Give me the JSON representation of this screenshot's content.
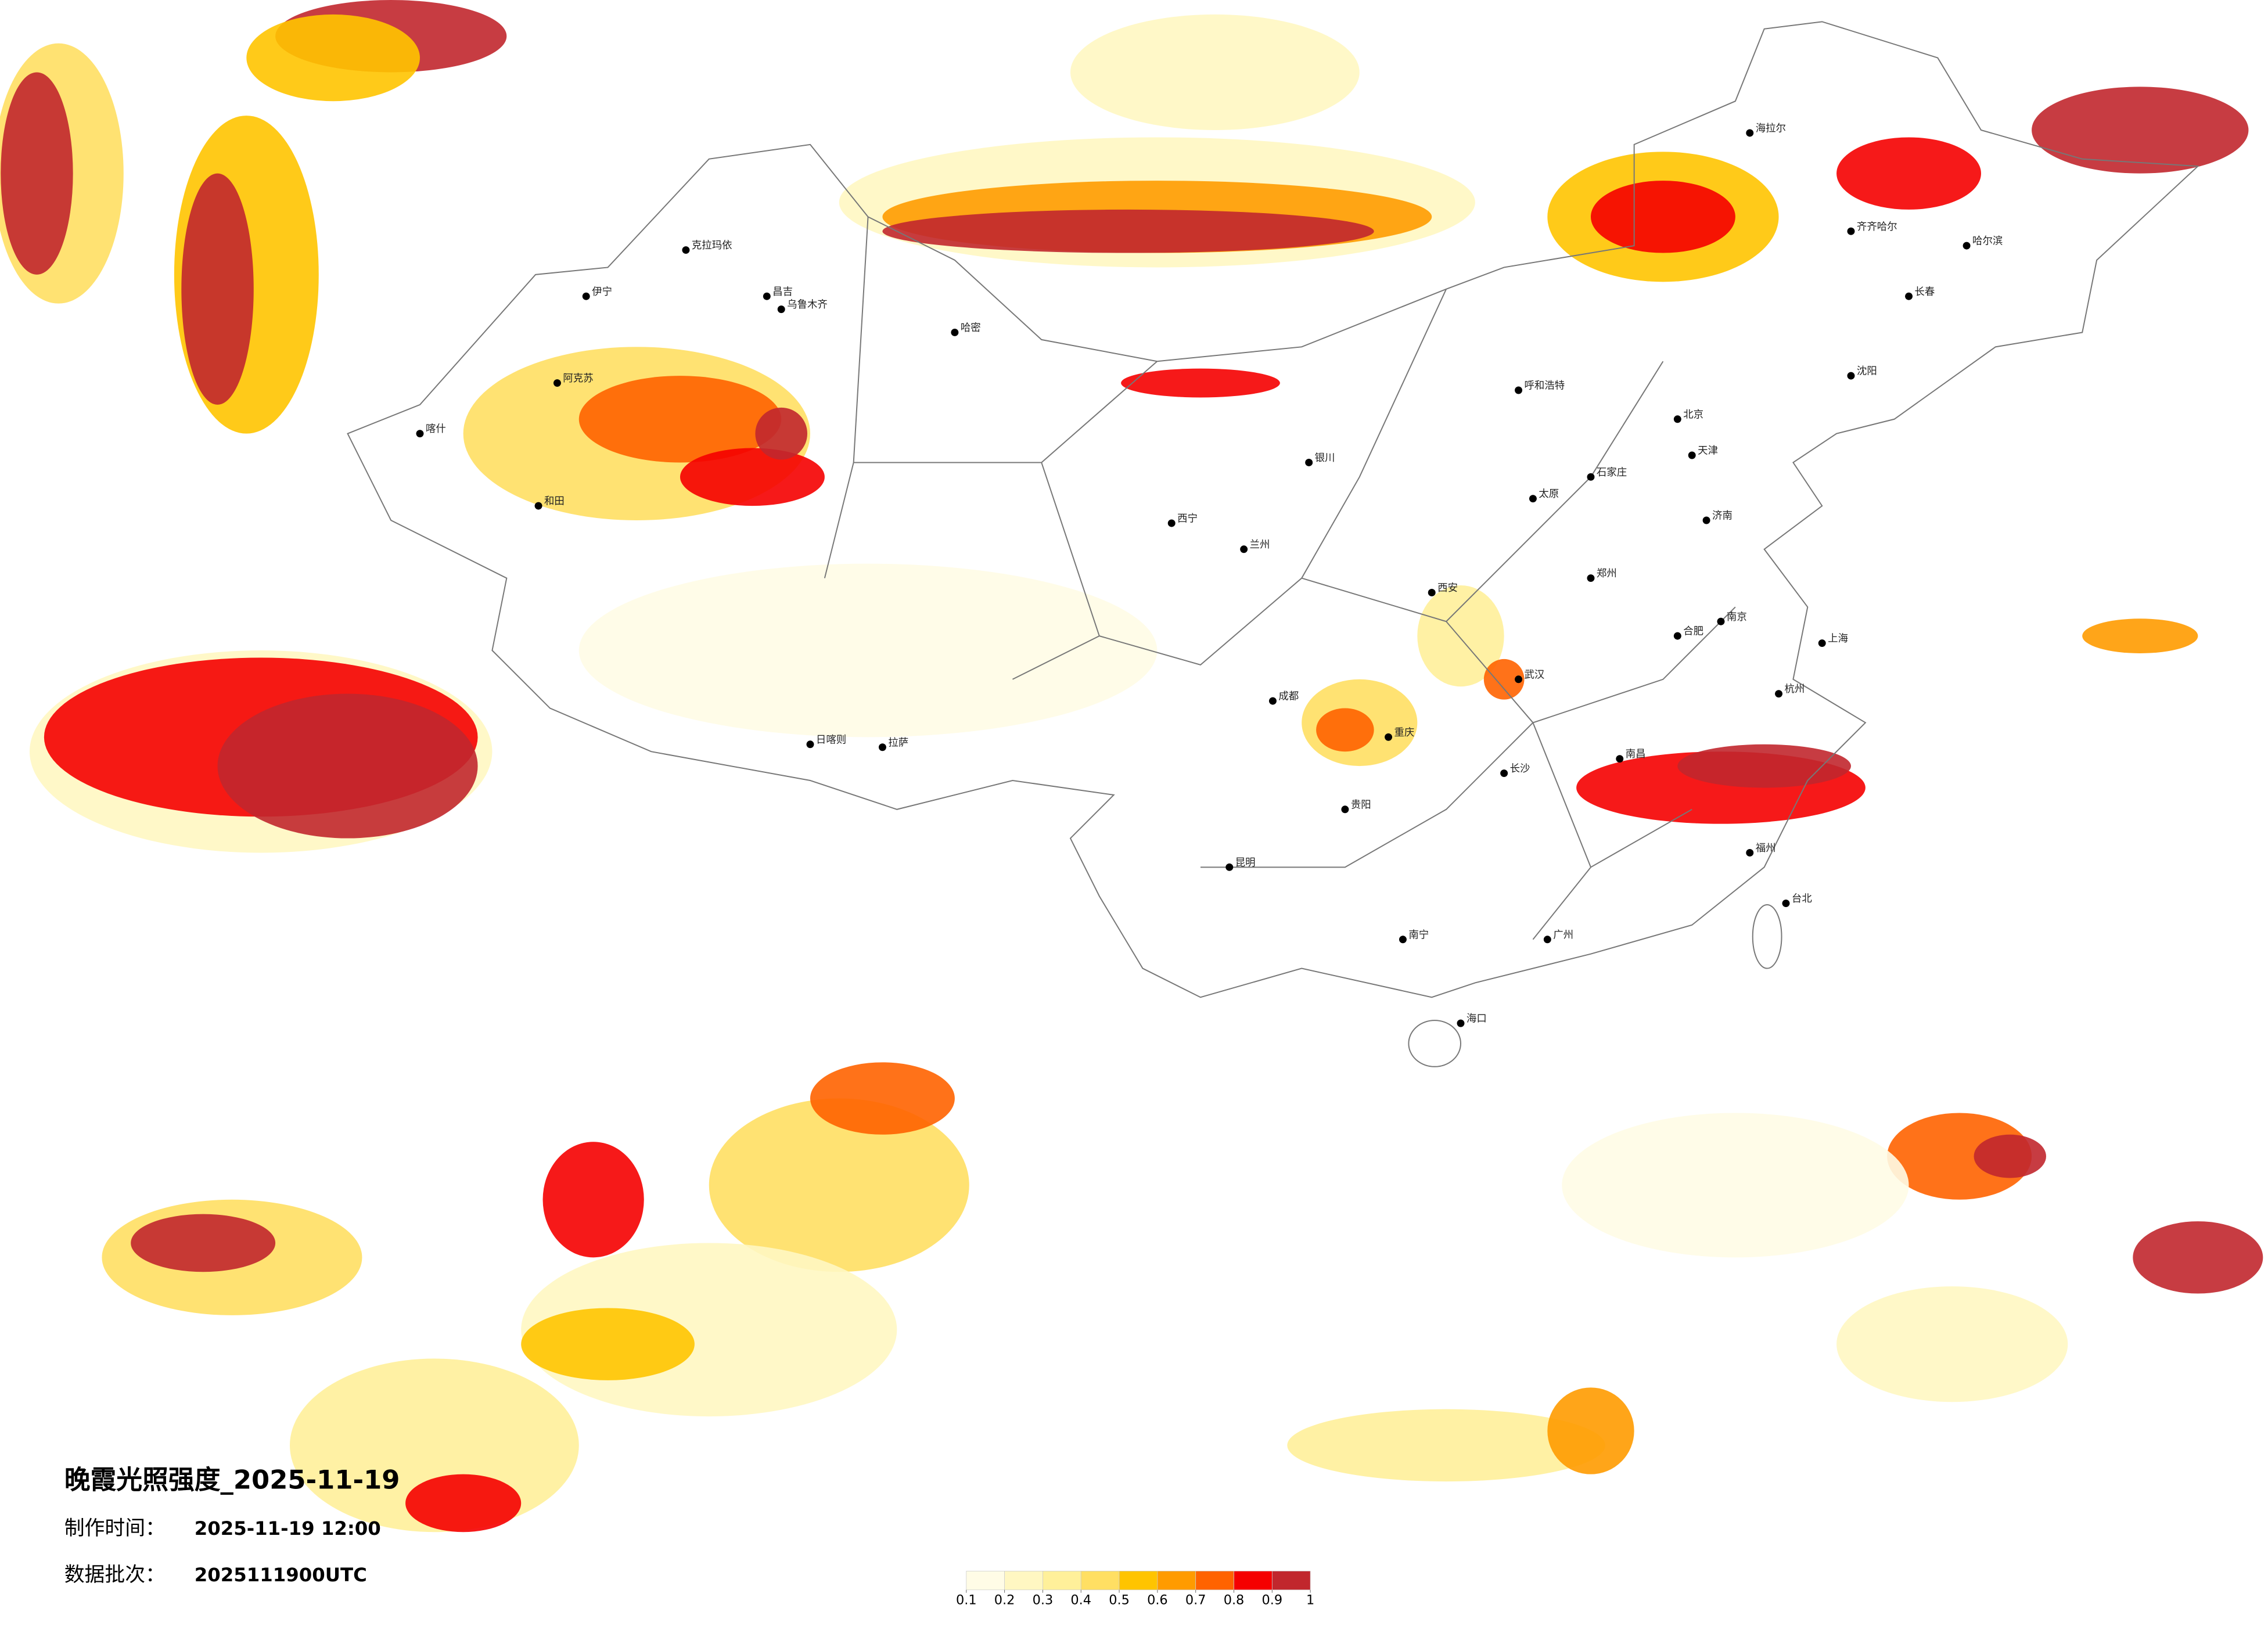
{
  "map": {
    "title": "晚霞光照强度_2025-11-19",
    "produced_label": "制作时间：",
    "produced_value": "2025-11-19 12:00",
    "batch_label": "数据批次：",
    "batch_value": "2025111900UTC",
    "legend": {
      "colors": [
        "#fffce6",
        "#fff7c2",
        "#fff09a",
        "#ffdf63",
        "#ffc400",
        "#ff9b00",
        "#ff6300",
        "#f50000",
        "#c1272d"
      ],
      "ticks": [
        0.1,
        0.2,
        0.3,
        0.4,
        0.5,
        0.6,
        0.7,
        0.8,
        0.9,
        1
      ]
    },
    "cities": [
      "克拉玛依",
      "伊宁",
      "昌吉",
      "乌鲁木齐",
      "哈密",
      "阿克苏",
      "和田",
      "喀什",
      "拉萨",
      "日喀则",
      "西宁",
      "兰州",
      "银川",
      "呼和浩特",
      "北京",
      "天津",
      "石家庄",
      "太原",
      "济南",
      "郑州",
      "西安",
      "成都",
      "重庆",
      "武汉",
      "长沙",
      "南昌",
      "合肥",
      "南京",
      "上海",
      "杭州",
      "福州",
      "广州",
      "南宁",
      "昆明",
      "贵阳",
      "海口",
      "哈尔滨",
      "长春",
      "沈阳",
      "台北",
      "海拉尔",
      "齐齐哈尔"
    ]
  }
}
